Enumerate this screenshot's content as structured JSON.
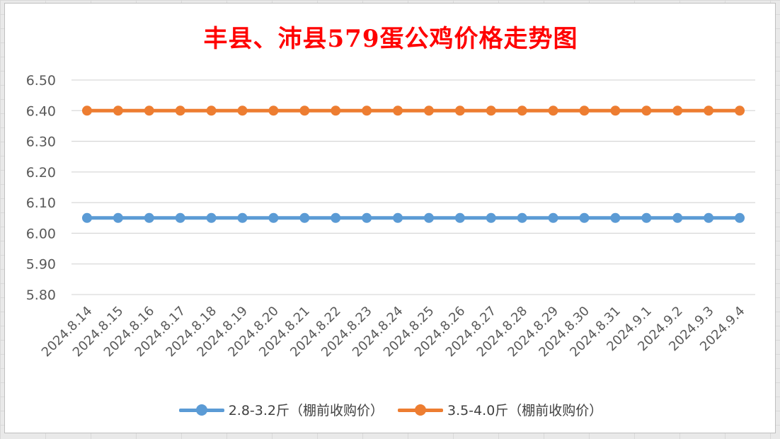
{
  "chart_data": {
    "type": "line",
    "title": "丰县、沛县579蛋公鸡价格走势图",
    "xlabel": "",
    "ylabel": "",
    "categories": [
      "2024.8.14",
      "2024.8.15",
      "2024.8.16",
      "2024.8.17",
      "2024.8.18",
      "2024.8.19",
      "2024.8.20",
      "2024.8.21",
      "2024.8.22",
      "2024.8.23",
      "2024.8.24",
      "2024.8.25",
      "2024.8.26",
      "2024.8.27",
      "2024.8.28",
      "2024.8.29",
      "2024.8.30",
      "2024.8.31",
      "2024.9.1",
      "2024.9.2",
      "2024.9.3",
      "2024.9.4"
    ],
    "series": [
      {
        "name": "2.8-3.2斤（棚前收购价）",
        "color": "#5b9bd5",
        "values": [
          6.05,
          6.05,
          6.05,
          6.05,
          6.05,
          6.05,
          6.05,
          6.05,
          6.05,
          6.05,
          6.05,
          6.05,
          6.05,
          6.05,
          6.05,
          6.05,
          6.05,
          6.05,
          6.05,
          6.05,
          6.05,
          6.05
        ]
      },
      {
        "name": "3.5-4.0斤（棚前收购价）",
        "color": "#ed7d31",
        "values": [
          6.4,
          6.4,
          6.4,
          6.4,
          6.4,
          6.4,
          6.4,
          6.4,
          6.4,
          6.4,
          6.4,
          6.4,
          6.4,
          6.4,
          6.4,
          6.4,
          6.4,
          6.4,
          6.4,
          6.4,
          6.4,
          6.4
        ]
      }
    ],
    "ylim": [
      5.8,
      6.5
    ],
    "yticks": [
      "6.50",
      "6.40",
      "6.30",
      "6.20",
      "6.10",
      "6.00",
      "5.90",
      "5.80"
    ],
    "grid": true,
    "legend_position": "bottom",
    "title_color": "#ff0000"
  }
}
